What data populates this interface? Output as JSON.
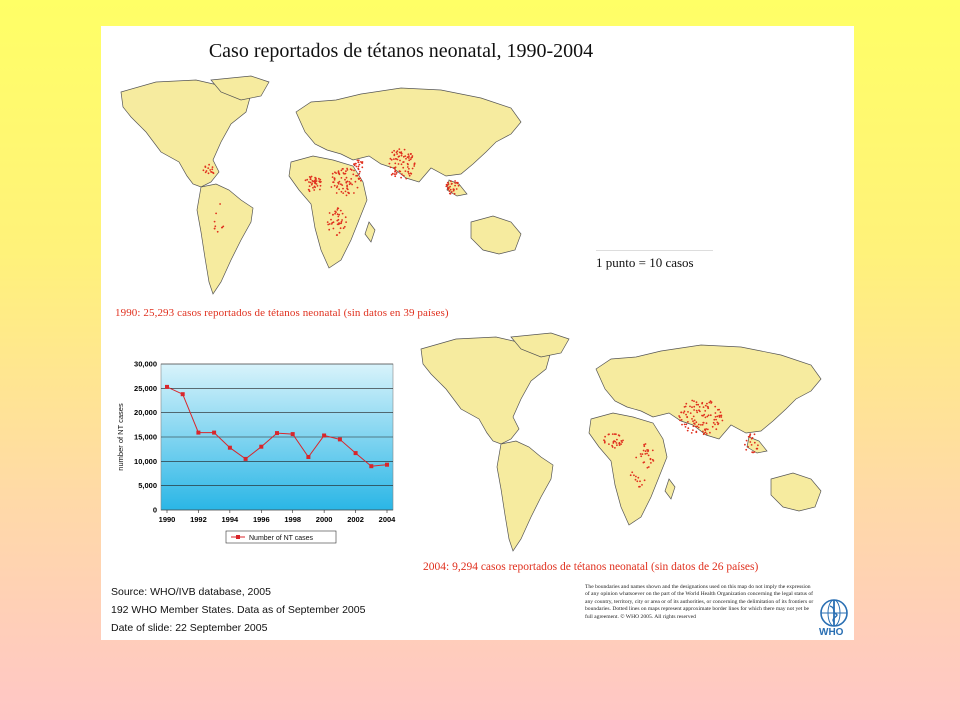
{
  "slide": {
    "title": "Caso reportados de tétanos neonatal, 1990-2004",
    "map1_caption": "1990: 25,293 casos reportados de tétanos neonatal (sin datos en 39 países)",
    "map2_caption": "2004: 9,294 casos reportados de tétanos neonatal (sin datos de 26 países)",
    "dot_legend": "1 punto = 10 casos",
    "source_lines": [
      "Source: WHO/IVB database, 2005",
      "192 WHO Member States. Data as of September 2005",
      "Date of slide: 22 September 2005"
    ],
    "disclaimer": "The boundaries and names shown and the designations used on this map do not imply the expression of any opinion whatsoever on the part of the World Health Organization concerning the legal status of any country, territory, city or area or of its authorities, or concerning the delimitation of its frontiers or boundaries. Dotted lines on maps represent approximate border lines for which there may not yet be full agreement. © WHO 2005. All rights reserved",
    "logo_text": "WHO"
  },
  "colors": {
    "land": "#f6eb9f",
    "ocean": "#ffffff",
    "dots": "#e0301e",
    "plot_bg_top": "#d8f3fb",
    "plot_bg_bottom": "#2ab6e6",
    "series": "#d9262b"
  },
  "chart_data": {
    "type": "line",
    "ylabel": "number of NT cases",
    "ylim": [
      0,
      30000
    ],
    "yticks": [
      0,
      5000,
      10000,
      15000,
      20000,
      25000,
      30000
    ],
    "ytick_labels": [
      "0",
      "5,000",
      "10,000",
      "15,000",
      "20,000",
      "25,000",
      "30,000"
    ],
    "xlim": [
      1990,
      2004
    ],
    "xticks": [
      1990,
      1992,
      1994,
      1996,
      1998,
      2000,
      2002,
      2004
    ],
    "grid": true,
    "legend": "bottom",
    "series": [
      {
        "name": "Number of NT cases",
        "x": [
          1990,
          1991,
          1992,
          1993,
          1994,
          1995,
          1996,
          1997,
          1998,
          1999,
          2000,
          2001,
          2002,
          2003,
          2004
        ],
        "y": [
          25300,
          23800,
          15900,
          15900,
          12800,
          10500,
          13000,
          15800,
          15600,
          10900,
          15300,
          14500,
          11700,
          9000,
          9300
        ]
      }
    ]
  }
}
